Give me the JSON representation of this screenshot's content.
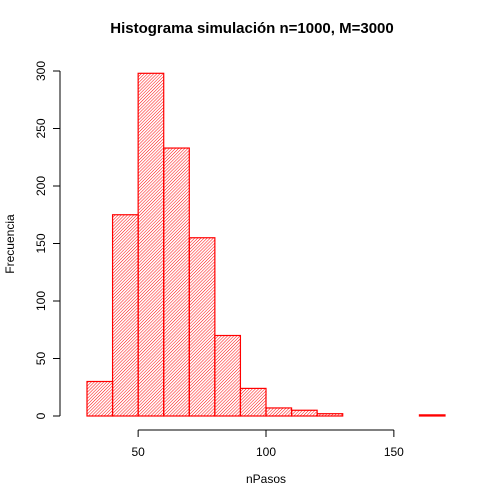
{
  "chart_data": {
    "type": "bar",
    "title": "Histograma simulación n=1000, M=3000",
    "xlabel": "nPasos",
    "ylabel": "Frecuencia",
    "bins": [
      {
        "start": 30,
        "end": 40,
        "count": 30
      },
      {
        "start": 40,
        "end": 50,
        "count": 175
      },
      {
        "start": 50,
        "end": 60,
        "count": 298
      },
      {
        "start": 60,
        "end": 70,
        "count": 233
      },
      {
        "start": 70,
        "end": 80,
        "count": 155
      },
      {
        "start": 80,
        "end": 90,
        "count": 70
      },
      {
        "start": 90,
        "end": 100,
        "count": 24
      },
      {
        "start": 100,
        "end": 110,
        "count": 7
      },
      {
        "start": 110,
        "end": 120,
        "count": 5
      },
      {
        "start": 120,
        "end": 130,
        "count": 2
      },
      {
        "start": 130,
        "end": 140,
        "count": 0
      },
      {
        "start": 140,
        "end": 150,
        "count": 0
      },
      {
        "start": 150,
        "end": 160,
        "count": 0
      },
      {
        "start": 160,
        "end": 170,
        "count": 1
      }
    ],
    "xlim": [
      30,
      170
    ],
    "ylim": [
      0,
      300
    ],
    "x_ticks": [
      50,
      100,
      150
    ],
    "x_tick_labels": [
      "50",
      "100",
      "150"
    ],
    "y_ticks": [
      0,
      50,
      100,
      150,
      200,
      250,
      300
    ],
    "y_tick_labels": [
      "0",
      "50",
      "100",
      "150",
      "200",
      "250",
      "300"
    ],
    "bar_color": "#ff0000",
    "fill": "hatched",
    "grid": false
  }
}
